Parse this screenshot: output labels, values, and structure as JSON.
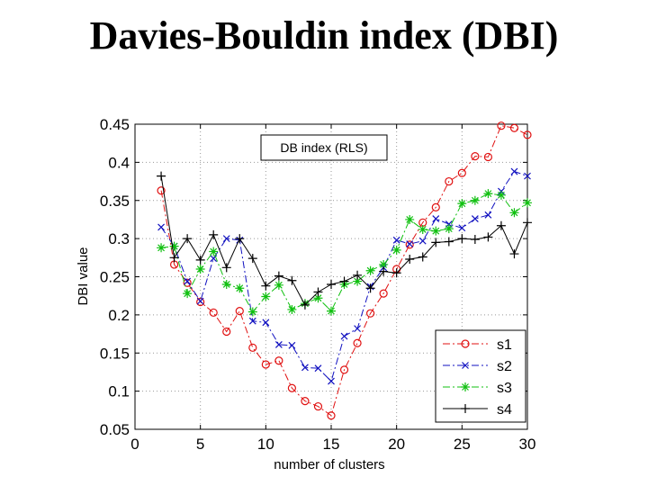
{
  "title": "Davies-Bouldin index (DBI)",
  "chart_data": {
    "type": "line",
    "title": "Davies-Bouldin index (DBI)",
    "xlabel": "number of clusters",
    "ylabel": "DBI value",
    "xlim": [
      0,
      30
    ],
    "ylim": [
      0.05,
      0.45
    ],
    "xticks": [
      0,
      5,
      10,
      15,
      20,
      25,
      30
    ],
    "yticks": [
      "0.05",
      "0.1",
      "0.15",
      "0.2",
      "0.25",
      "0.3",
      "0.35",
      "0.4",
      "0.45"
    ],
    "grid": true,
    "legend_position": "bottom-right",
    "annotation": "DB index (RLS)",
    "x": [
      2,
      3,
      4,
      5,
      6,
      7,
      8,
      9,
      10,
      11,
      12,
      13,
      14,
      15,
      16,
      17,
      18,
      19,
      20,
      21,
      22,
      23,
      24,
      25,
      26,
      27,
      28,
      29,
      30
    ],
    "series": [
      {
        "name": "s1",
        "color": "#e01010",
        "marker": "circle",
        "dash": "8,3,2,3",
        "values": [
          0.363,
          0.266,
          0.242,
          0.217,
          0.203,
          0.178,
          0.205,
          0.157,
          0.135,
          0.14,
          0.104,
          0.087,
          0.08,
          0.068,
          0.128,
          0.163,
          0.202,
          0.228,
          0.26,
          0.292,
          0.321,
          0.341,
          0.375,
          0.386,
          0.408,
          0.407,
          0.448,
          0.445,
          0.436
        ]
      },
      {
        "name": "s2",
        "color": "#1010c0",
        "marker": "x",
        "dash": "8,3,2,3",
        "values": [
          0.315,
          0.29,
          0.244,
          0.218,
          0.274,
          0.3,
          0.298,
          0.192,
          0.19,
          0.161,
          0.16,
          0.131,
          0.13,
          0.113,
          0.172,
          0.182,
          0.237,
          0.262,
          0.298,
          0.293,
          0.297,
          0.326,
          0.319,
          0.314,
          0.326,
          0.331,
          0.362,
          0.388,
          0.382
        ]
      },
      {
        "name": "s3",
        "color": "#10c010",
        "marker": "star",
        "dash": "8,3,2,3",
        "values": [
          0.288,
          0.29,
          0.228,
          0.26,
          0.283,
          0.24,
          0.235,
          0.204,
          0.224,
          0.239,
          0.207,
          0.215,
          0.222,
          0.205,
          0.24,
          0.244,
          0.258,
          0.266,
          0.285,
          0.325,
          0.312,
          0.31,
          0.313,
          0.346,
          0.35,
          0.359,
          0.357,
          0.334,
          0.347
        ]
      },
      {
        "name": "s4",
        "color": "#000000",
        "marker": "plus",
        "dash": "",
        "values": [
          0.382,
          0.275,
          0.3,
          0.272,
          0.305,
          0.262,
          0.3,
          0.274,
          0.238,
          0.251,
          0.245,
          0.213,
          0.23,
          0.24,
          0.244,
          0.252,
          0.235,
          0.257,
          0.255,
          0.273,
          0.276,
          0.295,
          0.296,
          0.3,
          0.299,
          0.302,
          0.317,
          0.28,
          0.321
        ]
      }
    ]
  }
}
